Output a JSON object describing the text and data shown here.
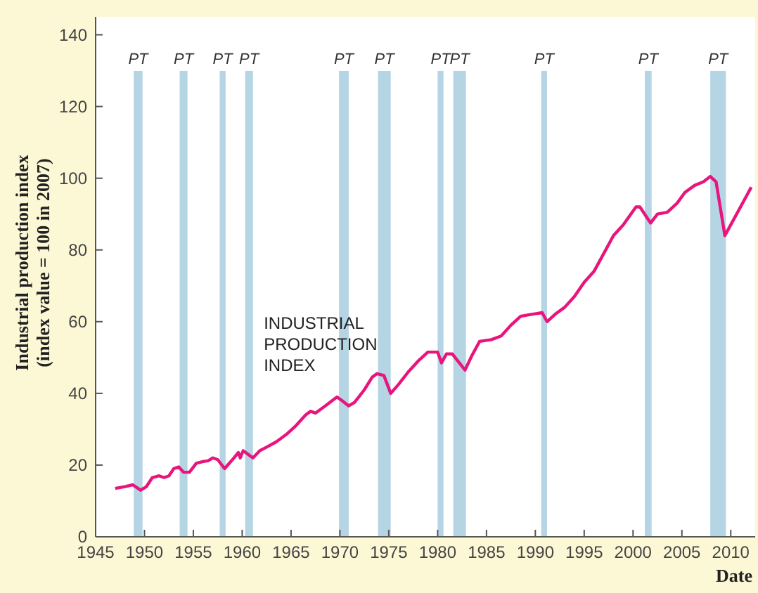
{
  "chart_data": {
    "type": "line",
    "xlabel": "Date",
    "ylabel": "Industrial production index\n(index value = 100 in 2007)",
    "xlim": [
      1945,
      2012.5
    ],
    "ylim": [
      0,
      145
    ],
    "xticks": [
      1945,
      1950,
      1955,
      1960,
      1965,
      1970,
      1975,
      1980,
      1985,
      1990,
      1995,
      2000,
      2005,
      2010
    ],
    "yticks": [
      0,
      20,
      40,
      60,
      80,
      100,
      120,
      140
    ],
    "series": [
      {
        "name": "INDUSTRIAL PRODUCTION INDEX",
        "color": "#e8157c",
        "x": [
          1947,
          1948,
          1948.8,
          1949.6,
          1950.2,
          1950.8,
          1951.5,
          1952,
          1952.5,
          1953,
          1953.5,
          1954,
          1954.6,
          1955.3,
          1956,
          1956.5,
          1957,
          1957.5,
          1958.2,
          1959,
          1959.6,
          1959.8,
          1960.1,
          1960.6,
          1961.1,
          1961.8,
          1962.5,
          1963.5,
          1964.5,
          1965.5,
          1966.5,
          1967,
          1967.5,
          1968.5,
          1969.7,
          1970.2,
          1970.9,
          1971.5,
          1972.5,
          1973.3,
          1973.8,
          1974.5,
          1975.2,
          1976,
          1977,
          1978,
          1979,
          1980,
          1980.4,
          1980.9,
          1981.5,
          1982.8,
          1983.5,
          1984.3,
          1985.5,
          1986.5,
          1987.5,
          1988.5,
          1989.5,
          1990.7,
          1991.2,
          1992,
          1993,
          1994,
          1995,
          1996,
          1997,
          1998,
          1999,
          2000.3,
          2000.7,
          2001.8,
          2002.5,
          2003.5,
          2004.5,
          2005.3,
          2006.3,
          2007.2,
          2007.9,
          2008.5,
          2009.4,
          2010.2,
          2011,
          2011.8,
          2012.1
        ],
        "values": [
          13.5,
          14,
          14.5,
          13,
          14,
          16.5,
          17,
          16.5,
          17,
          19,
          19.5,
          18,
          18,
          20.5,
          21,
          21.2,
          22,
          21.5,
          19,
          21.5,
          23.5,
          22,
          24,
          23,
          22,
          24,
          25,
          26.5,
          28.5,
          31,
          34,
          35,
          34.5,
          36.5,
          39,
          38,
          36.5,
          37.5,
          41,
          44.5,
          45.5,
          45,
          40,
          42.5,
          46,
          49,
          51.5,
          51.5,
          48.5,
          51,
          51,
          46.5,
          50.5,
          54.5,
          55,
          56,
          59,
          61.5,
          62,
          62.5,
          60,
          62,
          64,
          67,
          71,
          74,
          79,
          84,
          87,
          92,
          92,
          87.5,
          90,
          90.5,
          93,
          96,
          98,
          99,
          100.5,
          99,
          84,
          88,
          92,
          96,
          97.5
        ]
      }
    ],
    "bands": [
      {
        "axis": "x",
        "from": 1948.9,
        "to": 1949.8,
        "label": "PT",
        "color": "#b5d5e5"
      },
      {
        "axis": "x",
        "from": 1953.6,
        "to": 1954.4,
        "label": "PT",
        "color": "#b5d5e5"
      },
      {
        "axis": "x",
        "from": 1957.7,
        "to": 1958.3,
        "label": "PT",
        "color": "#b5d5e5"
      },
      {
        "axis": "x",
        "from": 1960.3,
        "to": 1961.1,
        "label": "PT",
        "color": "#b5d5e5"
      },
      {
        "axis": "x",
        "from": 1969.9,
        "to": 1970.9,
        "label": "PT",
        "color": "#b5d5e5"
      },
      {
        "axis": "x",
        "from": 1973.9,
        "to": 1975.2,
        "label": "PT",
        "color": "#b5d5e5"
      },
      {
        "axis": "x",
        "from": 1980.0,
        "to": 1980.6,
        "label": "PT",
        "color": "#b5d5e5"
      },
      {
        "axis": "x",
        "from": 1981.6,
        "to": 1982.9,
        "label": "PT",
        "color": "#b5d5e5"
      },
      {
        "axis": "x",
        "from": 1990.6,
        "to": 1991.2,
        "label": "PT",
        "color": "#b5d5e5"
      },
      {
        "axis": "x",
        "from": 2001.2,
        "to": 2001.9,
        "label": "PT",
        "color": "#b5d5e5"
      },
      {
        "axis": "x",
        "from": 2007.9,
        "to": 2009.5,
        "label": "PT",
        "color": "#b5d5e5"
      }
    ]
  }
}
